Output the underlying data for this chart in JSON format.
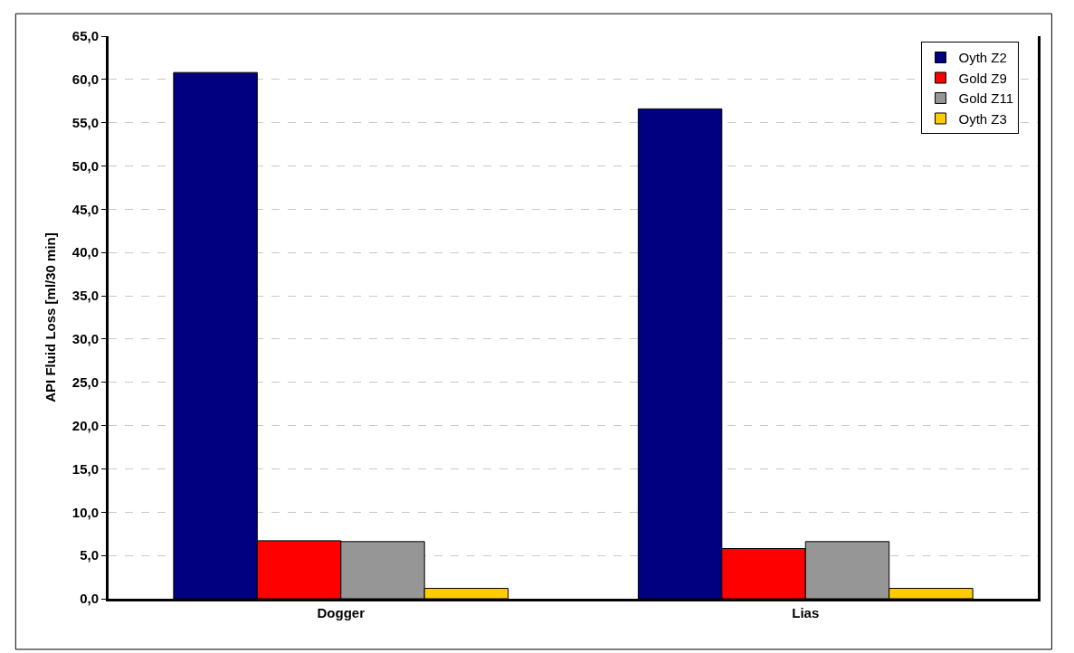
{
  "chart_data": {
    "type": "bar",
    "ylabel": "API Fluid Loss [ml/30 min]",
    "categories": [
      "Dogger",
      "Lias"
    ],
    "series": [
      {
        "name": "Oyth Z2",
        "color": "#000080",
        "values": [
          60.8,
          56.6
        ]
      },
      {
        "name": "Gold Z9",
        "color": "#ff0000",
        "values": [
          6.7,
          5.8
        ]
      },
      {
        "name": "Gold Z11",
        "color": "#969696",
        "values": [
          6.6,
          6.6
        ]
      },
      {
        "name": "Oyth Z3",
        "color": "#ffcc00",
        "values": [
          1.2,
          1.2
        ]
      }
    ],
    "ylim": [
      0,
      65
    ],
    "yticks": [
      {
        "value": 0,
        "label": "0,0"
      },
      {
        "value": 5,
        "label": "5,0"
      },
      {
        "value": 10,
        "label": "10,0"
      },
      {
        "value": 15,
        "label": "15,0"
      },
      {
        "value": 20,
        "label": "20,0"
      },
      {
        "value": 25,
        "label": "25,0"
      },
      {
        "value": 30,
        "label": "30,0"
      },
      {
        "value": 35,
        "label": "35,0"
      },
      {
        "value": 40,
        "label": "40,0"
      },
      {
        "value": 45,
        "label": "45,0"
      },
      {
        "value": 50,
        "label": "50,0"
      },
      {
        "value": 55,
        "label": "55,0"
      },
      {
        "value": 60,
        "label": "60,0"
      },
      {
        "value": 65,
        "label": "65,0"
      }
    ],
    "grid": "y",
    "legend": "top right"
  }
}
